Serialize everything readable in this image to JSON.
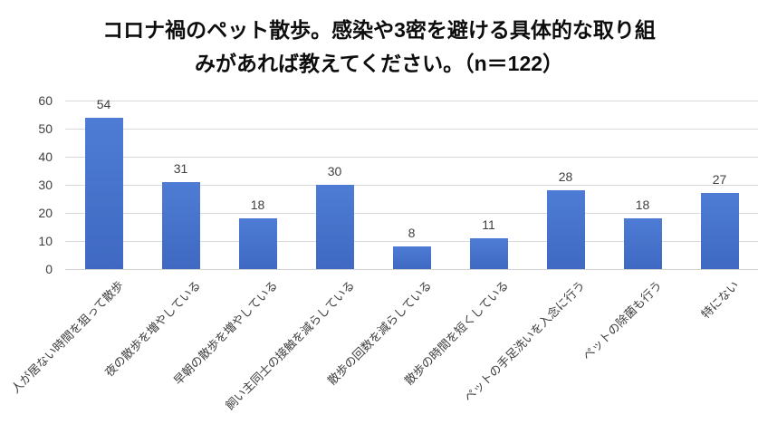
{
  "chart_data": {
    "type": "bar",
    "title": "コロナ禍のペット散歩。感染や3密を避ける具体的な取り組みがあれば教えてください。（n＝122）",
    "title_lines": [
      "コロナ禍のペット散歩。感染や3密を避ける具体的な取り組",
      "みがあれば教えてください。（n＝122）"
    ],
    "categories": [
      "人が居ない時間を狙って散歩",
      "夜の散歩を増やしている",
      "早朝の散歩を増やしている",
      "飼い主同士の接触を減らしている",
      "散歩の回数を減らしている",
      "散歩の時間を短くしている",
      "ペットの手足洗いを入念に行う",
      "ペットの除菌も行う",
      "特にない"
    ],
    "values": [
      54,
      31,
      18,
      30,
      8,
      11,
      28,
      18,
      27
    ],
    "xlabel": "",
    "ylabel": "",
    "ylim": [
      0,
      60
    ],
    "yticks": [
      0,
      10,
      20,
      30,
      40,
      50,
      60
    ],
    "grid": true,
    "legend_position": "none",
    "data_labels": true,
    "colors": {
      "bar_top": "#4e7cd4",
      "bar_bottom": "#3f69c2",
      "bar_base": "#4472c4",
      "gridline": "#d9d9d9",
      "axis_text": "#3f3f3f",
      "title_text": "#0d0d0d",
      "background": "#ffffff"
    }
  }
}
